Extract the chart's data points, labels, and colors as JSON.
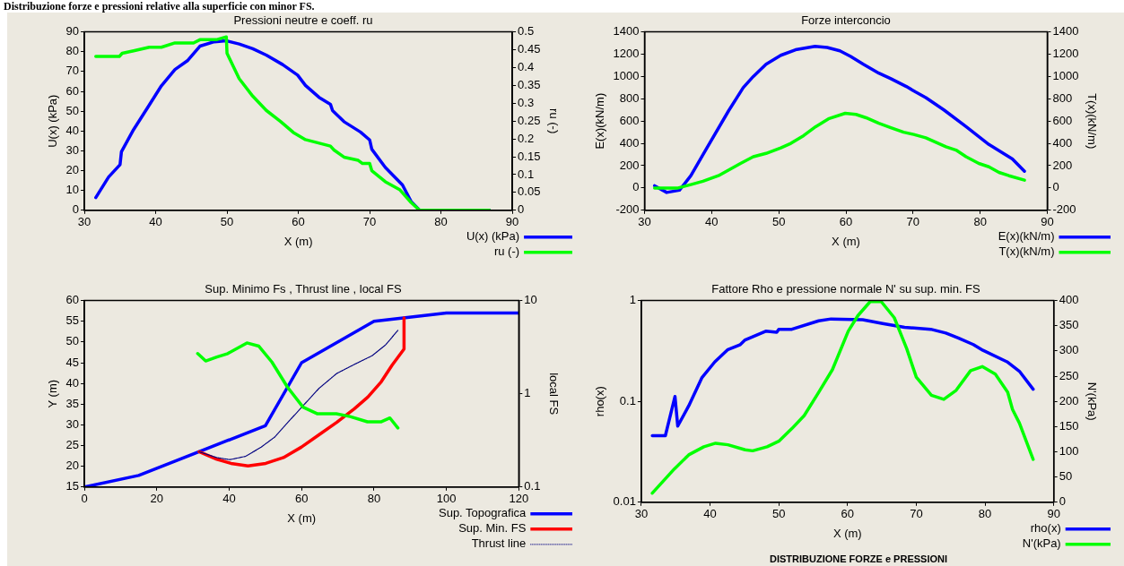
{
  "chart_data": [
    {
      "type": "line",
      "title": "Pressioni neutre e coeff. ru",
      "xlabel": "X (m)",
      "ylabel": "U(x) (kPa)",
      "y2label": "ru (-)",
      "annotations": [
        "Distribuzione forze e pressioni relative alla superficie con minor FS."
      ],
      "xlim": [
        30,
        90
      ],
      "xticks": [
        30,
        40,
        50,
        60,
        70,
        80,
        90
      ],
      "ylim": [
        0,
        90
      ],
      "yticks": [
        0,
        10,
        20,
        30,
        40,
        50,
        60,
        70,
        80,
        90
      ],
      "y2lim": [
        0,
        0.5
      ],
      "y2ticks": [
        0,
        0.05,
        0.1,
        0.15,
        0.2,
        0.25,
        0.3,
        0.35,
        0.4,
        0.45,
        0.5
      ],
      "grid": false,
      "legend": "bottom right",
      "series": [
        {
          "name": "U(x) (kPa)",
          "color": "#0000ff",
          "x": [
            31.6,
            33.4,
            35.0,
            35.2,
            36.9,
            38.9,
            40.8,
            42.7,
            44.5,
            46.2,
            48.2,
            49.9,
            51.7,
            53.6,
            55.5,
            57.8,
            59.9,
            61.0,
            62.9,
            64.5,
            64.8,
            66.4,
            68.7,
            70.0,
            70.3,
            72.2,
            74.6,
            75.8,
            77.0,
            86.8
          ],
          "values": [
            6.4,
            16.8,
            23,
            29.6,
            40.7,
            52,
            62.8,
            71,
            75.6,
            82.8,
            85,
            85.5,
            83.9,
            81.5,
            78.3,
            73.5,
            68.2,
            63,
            57,
            53.5,
            50.3,
            44.7,
            39.5,
            35.5,
            30.8,
            21.6,
            12.8,
            4.5,
            0,
            0
          ]
        },
        {
          "name": "ru (-)",
          "color": "#00ff00",
          "axis": "y2",
          "x": [
            31.6,
            34.9,
            35.3,
            36.9,
            39.1,
            40.8,
            42.7,
            45.3,
            46.2,
            48.5,
            49.9,
            50.0,
            51.7,
            53.6,
            55.5,
            57.5,
            59.3,
            61.0,
            64.5,
            65.0,
            66.4,
            68.4,
            69.0,
            70.0,
            70.3,
            72.2,
            74.2,
            75.8,
            77.0,
            86.8
          ],
          "values": [
            0.431,
            0.431,
            0.44,
            0.447,
            0.457,
            0.457,
            0.469,
            0.469,
            0.478,
            0.478,
            0.486,
            0.44,
            0.369,
            0.32,
            0.28,
            0.249,
            0.218,
            0.198,
            0.18,
            0.169,
            0.149,
            0.14,
            0.131,
            0.131,
            0.111,
            0.08,
            0.058,
            0.022,
            0,
            0
          ]
        }
      ]
    },
    {
      "type": "line",
      "title": "Forze interconcio",
      "xlabel": "X (m)",
      "ylabel": "E(x)(kN/m)",
      "y2label": "T(x)(kN/m)",
      "xlim": [
        30,
        90
      ],
      "xticks": [
        30,
        40,
        50,
        60,
        70,
        80,
        90
      ],
      "ylim": [
        -200,
        1400
      ],
      "yticks": [
        -200,
        0,
        200,
        400,
        600,
        800,
        1000,
        1200,
        1400
      ],
      "y2lim": [
        -200,
        1400
      ],
      "y2ticks": [
        -200,
        0,
        200,
        400,
        600,
        800,
        1000,
        1200,
        1400
      ],
      "grid": false,
      "legend": "bottom right",
      "series": [
        {
          "name": "E(x)(kN/m)",
          "color": "#0000ff",
          "x": [
            31.5,
            33.3,
            35.2,
            36.9,
            39.1,
            42.5,
            44.7,
            46.2,
            48.1,
            50.3,
            52.5,
            55.4,
            57.2,
            59.1,
            60.7,
            62.6,
            64.9,
            66.7,
            69.0,
            70.4,
            71.9,
            74.6,
            77.9,
            81.3,
            84.8,
            86.6
          ],
          "values": [
            20,
            -40,
            -20,
            110,
            340,
            690,
            900,
            1000,
            1110,
            1190,
            1240,
            1270,
            1260,
            1230,
            1180,
            1110,
            1030,
            980,
            910,
            860,
            810,
            700,
            550,
            390,
            260,
            150
          ]
        },
        {
          "name": "T(x)(kN/m)",
          "color": "#00ff00",
          "axis": "y2",
          "x": [
            31.5,
            35.0,
            36.9,
            38.7,
            41.0,
            42.8,
            44.3,
            46.2,
            48.1,
            50.3,
            51.8,
            53.7,
            55.5,
            57.4,
            59.9,
            61.5,
            63.0,
            64.9,
            66.7,
            68.6,
            70.1,
            71.9,
            73.4,
            74.9,
            76.4,
            77.9,
            79.8,
            81.3,
            82.8,
            84.3,
            86.6
          ],
          "values": [
            0,
            0,
            30,
            60,
            110,
            170,
            220,
            280,
            310,
            360,
            400,
            470,
            550,
            620,
            670,
            660,
            630,
            580,
            540,
            500,
            480,
            450,
            410,
            370,
            340,
            280,
            220,
            190,
            140,
            110,
            70
          ]
        }
      ]
    },
    {
      "type": "line",
      "title": "Sup. Minimo Fs , Thrust line , local FS",
      "xlabel": "X (m)",
      "ylabel": "Y (m)",
      "y2label": "local FS",
      "xlim": [
        0,
        120
      ],
      "xticks": [
        0,
        20,
        40,
        60,
        80,
        100,
        120
      ],
      "ylim": [
        15,
        60
      ],
      "yticks": [
        15,
        20,
        25,
        30,
        35,
        40,
        45,
        50,
        55,
        60
      ],
      "y2lim": [
        0.1,
        10
      ],
      "y2ticks": [
        0.1,
        1,
        10
      ],
      "log": "y2",
      "grid": false,
      "legend": "bottom right",
      "series": [
        {
          "name": "Sup. Topografica",
          "color": "#0000ff",
          "x": [
            0,
            15,
            50,
            60,
            80,
            100,
            120
          ],
          "values": [
            15,
            17.8,
            29.8,
            45,
            55,
            57,
            57
          ]
        },
        {
          "name": "Sup. Min. FS",
          "color": "#ff0000",
          "x": [
            31.7,
            36.6,
            40.5,
            45.2,
            50.1,
            55.0,
            59.9,
            64.8,
            69.7,
            74.6,
            78.3,
            82.0,
            85.0,
            88.3,
            88.3
          ],
          "values": [
            23.5,
            21.7,
            20.7,
            20.1,
            20.7,
            22.1,
            24.6,
            27.6,
            30.6,
            33.9,
            36.7,
            40.4,
            44.4,
            48.3,
            55.8
          ]
        },
        {
          "name": "Thrust line",
          "color": "#000080",
          "line_style": "dotted",
          "x": [
            31.7,
            36.6,
            40.2,
            44.5,
            48.8,
            52.5,
            56.2,
            60.5,
            64.8,
            69.7,
            74.6,
            79.5,
            83.2,
            86.6
          ],
          "values": [
            23.5,
            22.1,
            21.6,
            22.4,
            24.6,
            27.0,
            30.6,
            34.7,
            38.8,
            42.4,
            44.6,
            46.7,
            49.3,
            52.8
          ]
        },
        {
          "color": "#00ff00",
          "axis": "y2",
          "x": [
            31.3,
            33.5,
            36.6,
            39.6,
            44.9,
            48.2,
            51.8,
            56.1,
            60.4,
            64.4,
            69.6,
            73.4,
            78.2,
            81.9,
            84.4,
            86.6
          ],
          "values": [
            2.7,
            2.25,
            2.48,
            2.7,
            3.51,
            3.24,
            2.19,
            1.18,
            0.72,
            0.61,
            0.61,
            0.57,
            0.5,
            0.5,
            0.55,
            0.43
          ]
        }
      ]
    },
    {
      "type": "line",
      "title": "Fattore Rho e pressione normale N' su sup. min. FS",
      "xlabel": "X (m)",
      "ylabel": "rho(x)",
      "y2label": "N'(kPa)",
      "annotations": [
        "DISTRIBUZIONE FORZE e PRESSIONI"
      ],
      "xlim": [
        30,
        90
      ],
      "xticks": [
        30,
        40,
        50,
        60,
        70,
        80,
        90
      ],
      "ylim": [
        0.01,
        1
      ],
      "yticks": [
        0.01,
        0.1,
        1
      ],
      "log": "y",
      "y2lim": [
        0,
        400
      ],
      "y2ticks": [
        0,
        50,
        100,
        150,
        200,
        250,
        300,
        350,
        400
      ],
      "grid": false,
      "legend": "bottom right",
      "series": [
        {
          "name": "rho(x)",
          "color": "#0000ff",
          "x": [
            31.6,
            33.5,
            34.9,
            35.3,
            36.9,
            38.8,
            40.7,
            42.6,
            44.4,
            45.1,
            48.1,
            49.7,
            50.0,
            51.9,
            55.8,
            57.6,
            62.2,
            65.1,
            68.3,
            72.1,
            74.3,
            76.1,
            78.3,
            79.7,
            83.2,
            85.0,
            87.0
          ],
          "values": [
            0.0457,
            0.0457,
            0.112,
            0.0569,
            0.0904,
            0.171,
            0.247,
            0.327,
            0.366,
            0.407,
            0.497,
            0.484,
            0.519,
            0.519,
            0.629,
            0.657,
            0.646,
            0.592,
            0.543,
            0.519,
            0.476,
            0.425,
            0.366,
            0.321,
            0.247,
            0.199,
            0.132
          ]
        },
        {
          "name": "N'(kPa)",
          "color": "#00ff00",
          "axis": "y2",
          "x": [
            31.6,
            34.8,
            36.9,
            39.1,
            40.8,
            42.6,
            45.1,
            46.2,
            48.3,
            50.0,
            51.9,
            53.7,
            55.8,
            57.8,
            60.1,
            61.5,
            63.3,
            64.9,
            66.8,
            68.6,
            70.0,
            72.2,
            74.0,
            75.8,
            77.9,
            79.6,
            81.5,
            83.3,
            84.0,
            85.0,
            87.0
          ],
          "values": [
            18,
            66,
            94,
            110,
            117,
            114,
            104,
            102,
            110,
            121,
            146,
            172,
            218,
            263,
            339,
            370,
            398,
            398,
            366,
            305,
            248,
            212,
            204,
            222,
            261,
            269,
            254,
            218,
            184,
            157,
            85
          ]
        }
      ]
    }
  ]
}
